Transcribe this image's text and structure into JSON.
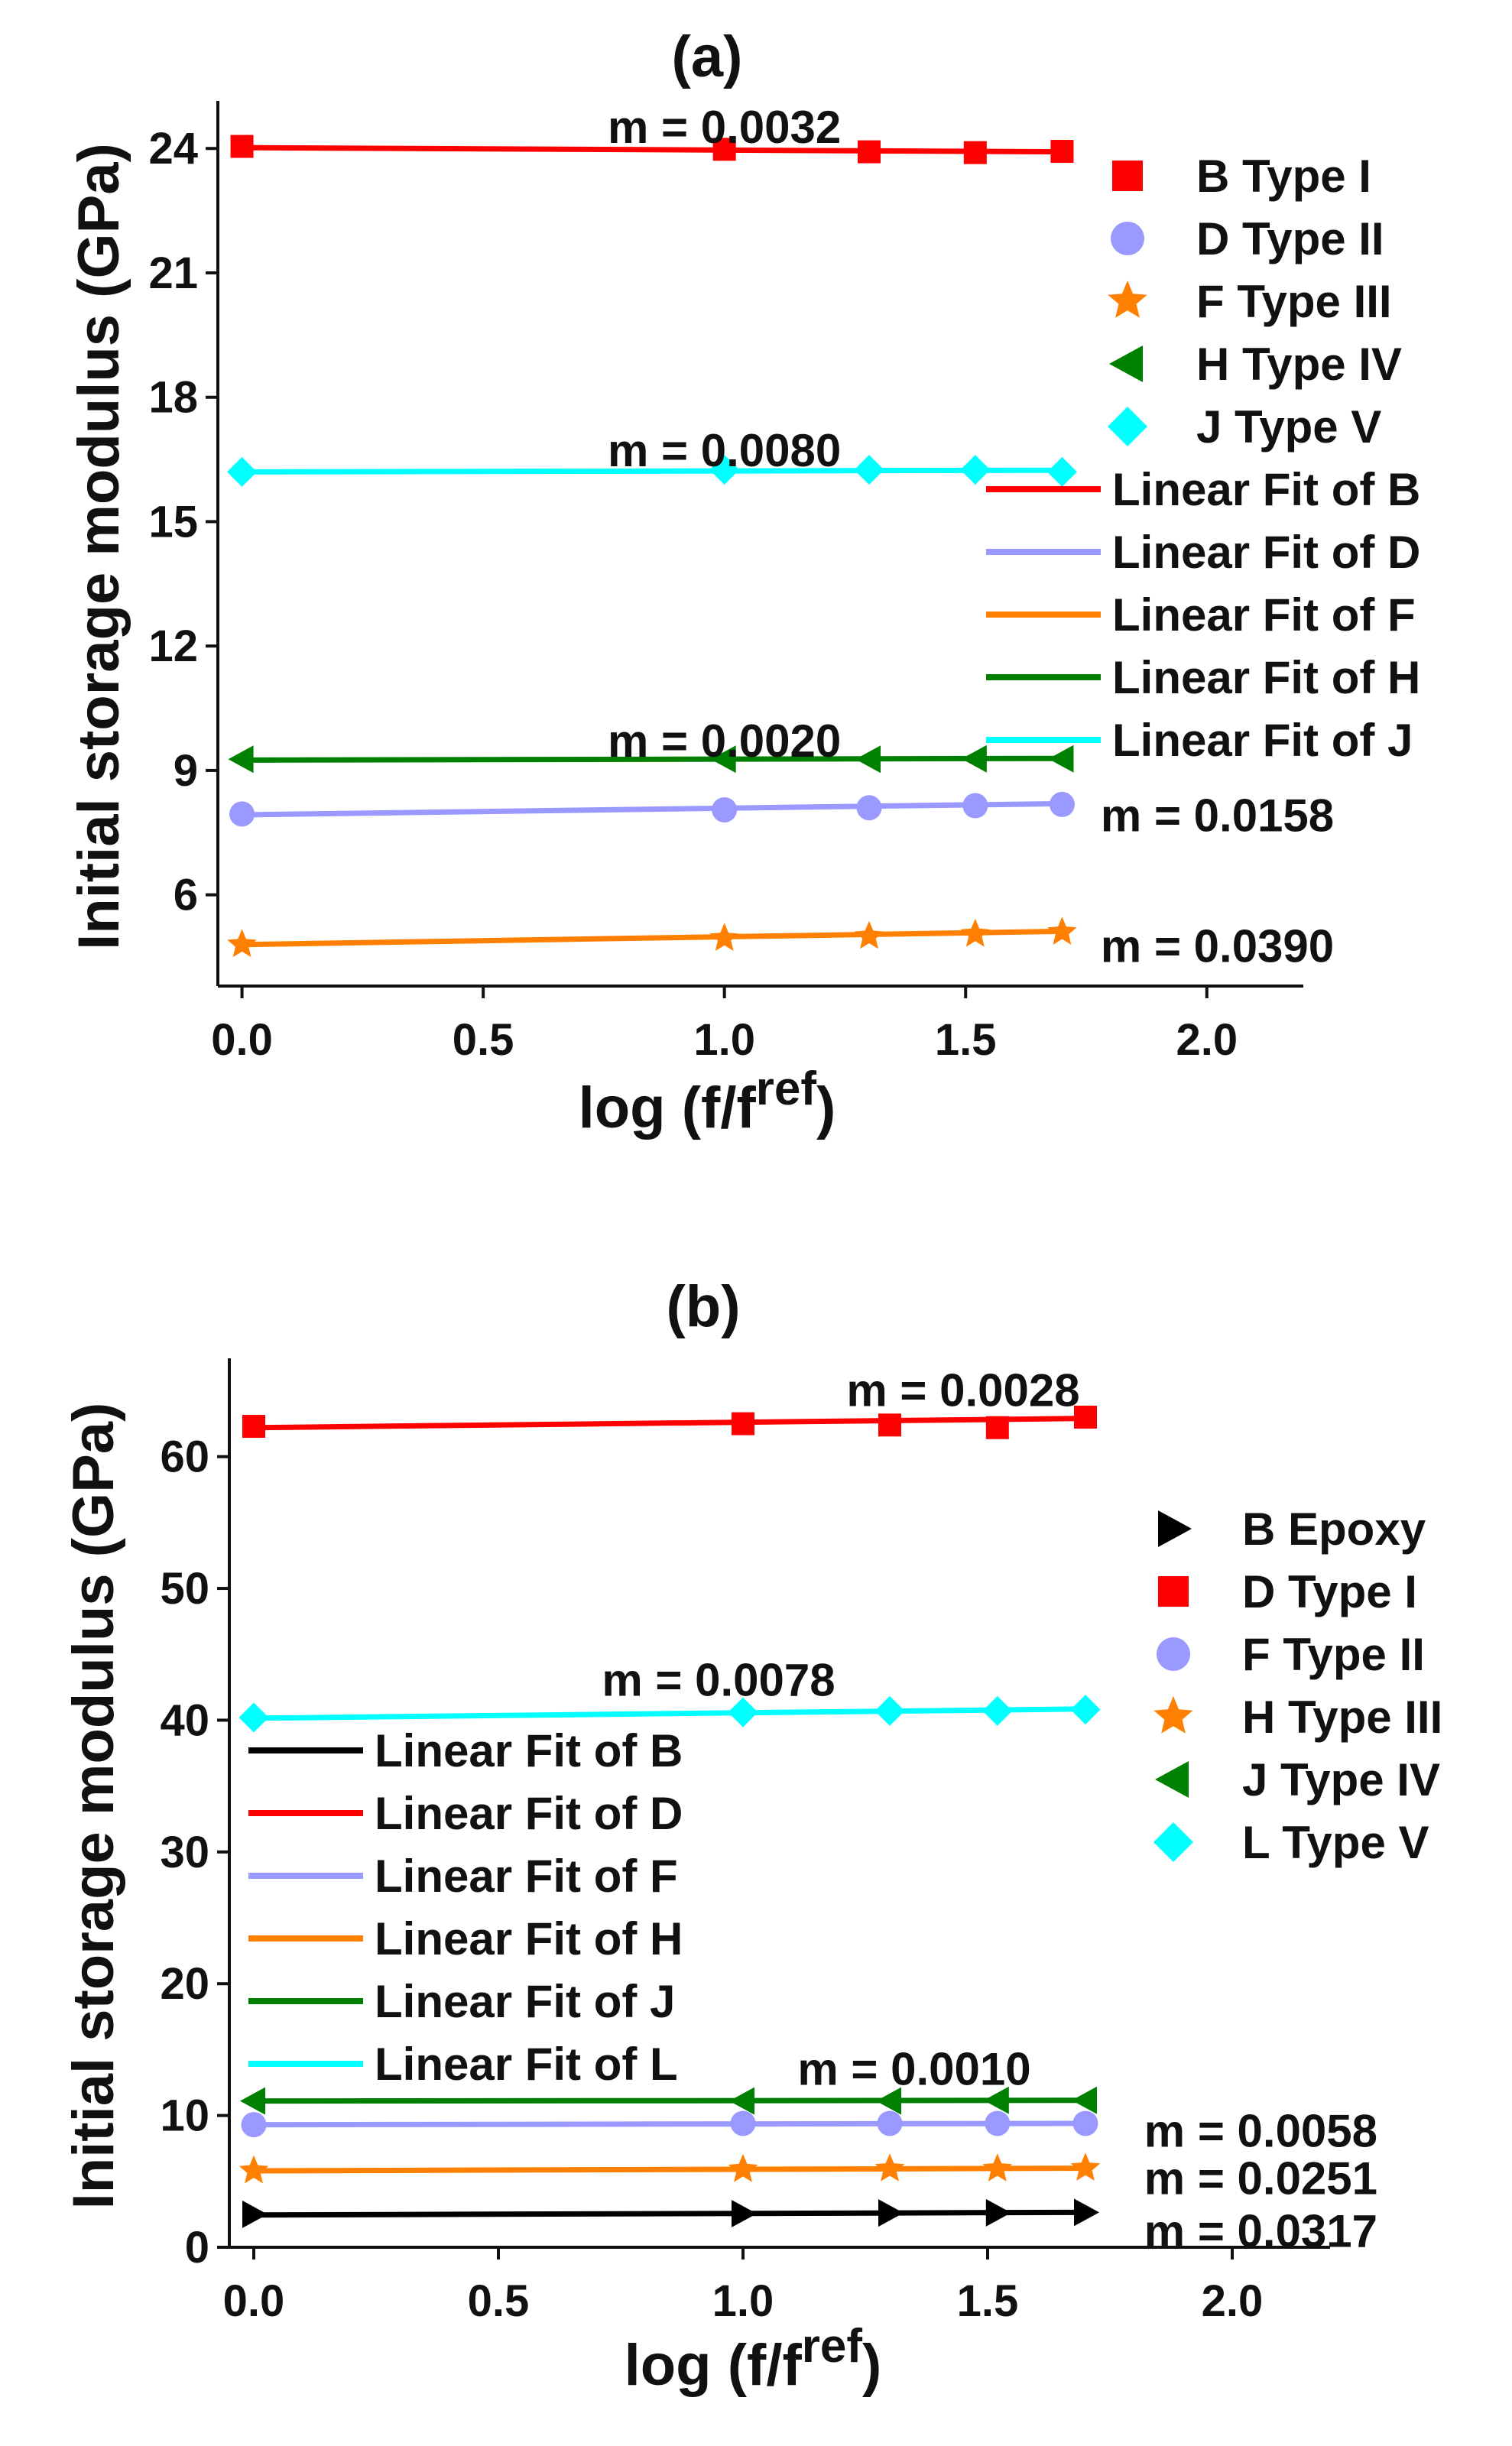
{
  "chart_data": [
    {
      "panel": "(a)",
      "type": "scatter",
      "xlabel": "log (f/f",
      "xlabel_sup": "ref",
      "xlabel_end": ")",
      "ylabel": "Initial storage modulus (GPa)",
      "xlim": [
        -0.05,
        2.2
      ],
      "ylim": [
        3.8,
        25.0
      ],
      "xticks": [
        0.0,
        0.5,
        1.0,
        1.5,
        2.0
      ],
      "xtick_labels": [
        "0.0",
        "0.5",
        "1.0",
        "1.5",
        "2.0"
      ],
      "yticks": [
        6,
        9,
        12,
        15,
        18,
        21,
        24
      ],
      "ytick_labels": [
        "6",
        "9",
        "12",
        "15",
        "18",
        "21",
        "24"
      ],
      "grid": false,
      "legend_position": "right",
      "x": [
        0.0,
        1.0,
        1.3,
        1.52,
        1.7
      ],
      "series": [
        {
          "name": "B Type I",
          "marker": "square",
          "color": "#ff0000",
          "values": [
            24.05,
            23.98,
            23.92,
            23.9,
            23.93
          ],
          "fit": [
            24.02,
            23.92
          ]
        },
        {
          "name": "D Type II",
          "marker": "circle",
          "color": "#9999ff",
          "values": [
            7.95,
            8.05,
            8.1,
            8.15,
            8.18
          ],
          "fit": [
            7.93,
            8.2
          ]
        },
        {
          "name": "F Type III",
          "marker": "star",
          "color": "#ff8000",
          "values": [
            4.8,
            4.95,
            5.0,
            5.05,
            5.1
          ],
          "fit": [
            4.8,
            5.12
          ]
        },
        {
          "name": "H Type IV",
          "marker": "triangle-left",
          "color": "#008000",
          "values": [
            9.27,
            9.27,
            9.27,
            9.28,
            9.28
          ],
          "fit": [
            9.25,
            9.29
          ]
        },
        {
          "name": "J Type V",
          "marker": "diamond",
          "color": "#00ffff",
          "values": [
            16.2,
            16.25,
            16.25,
            16.25,
            16.2
          ],
          "fit": [
            16.2,
            16.24
          ]
        }
      ],
      "fit_legend": [
        {
          "name": "Linear Fit of B",
          "color": "#ff0000"
        },
        {
          "name": "Linear Fit of D",
          "color": "#9999ff"
        },
        {
          "name": "Linear Fit of F",
          "color": "#ff8000"
        },
        {
          "name": "Linear Fit of H",
          "color": "#008000"
        },
        {
          "name": "Linear Fit of J",
          "color": "#00ffff"
        }
      ],
      "annotations": [
        {
          "text": "m = 0.0032",
          "x": 1.0,
          "y": 24.5,
          "anchor": "middle"
        },
        {
          "text": "m = 0.0080",
          "x": 1.0,
          "y": 16.7,
          "anchor": "middle"
        },
        {
          "text": "m = 0.0020",
          "x": 1.0,
          "y": 9.7,
          "anchor": "middle"
        },
        {
          "text": "m = 0.0158",
          "x": 1.78,
          "y": 7.9,
          "anchor": "start"
        },
        {
          "text": "m = 0.0390",
          "x": 1.78,
          "y": 4.75,
          "anchor": "start"
        }
      ]
    },
    {
      "panel": "(b)",
      "type": "scatter",
      "xlabel": "log (f/f",
      "xlabel_sup": "ref",
      "xlabel_end": ")",
      "ylabel": "Initial storage modulus (GPa)",
      "xlim": [
        -0.05,
        2.2
      ],
      "ylim": [
        0,
        67
      ],
      "xticks": [
        0.0,
        0.5,
        1.0,
        1.5,
        2.0
      ],
      "xtick_labels": [
        "0.0",
        "0.5",
        "1.0",
        "1.5",
        "2.0"
      ],
      "yticks": [
        0,
        10,
        20,
        30,
        40,
        50,
        60
      ],
      "ytick_labels": [
        "0",
        "10",
        "20",
        "30",
        "40",
        "50",
        "60"
      ],
      "grid": false,
      "legend_position": "right",
      "x": [
        0.0,
        1.0,
        1.3,
        1.52,
        1.7
      ],
      "series": [
        {
          "name": "B Epoxy",
          "marker": "triangle-right",
          "color": "#000000",
          "values": [
            2.5,
            2.55,
            2.6,
            2.62,
            2.65
          ],
          "fit": [
            2.45,
            2.65
          ]
        },
        {
          "name": "D Type I",
          "marker": "square",
          "color": "#ff0000",
          "values": [
            62.3,
            62.5,
            62.4,
            62.2,
            63.0
          ],
          "fit": [
            62.2,
            62.9
          ]
        },
        {
          "name": "F Type II",
          "marker": "circle",
          "color": "#9999ff",
          "values": [
            9.3,
            9.4,
            9.4,
            9.4,
            9.4
          ],
          "fit": [
            9.3,
            9.4
          ]
        },
        {
          "name": "H Type III",
          "marker": "star",
          "color": "#ff8000",
          "values": [
            5.8,
            5.9,
            5.95,
            5.95,
            6.0
          ],
          "fit": [
            5.8,
            6.0
          ]
        },
        {
          "name": "J Type IV",
          "marker": "triangle-left",
          "color": "#008000",
          "values": [
            11.1,
            11.1,
            11.1,
            11.15,
            11.15
          ],
          "fit": [
            11.1,
            11.15
          ]
        },
        {
          "name": "L Type V",
          "marker": "diamond",
          "color": "#00ffff",
          "values": [
            40.2,
            40.6,
            40.7,
            40.7,
            40.8
          ],
          "fit": [
            40.15,
            40.85
          ]
        }
      ],
      "fit_legend": [
        {
          "name": "Linear Fit of B",
          "color": "#000000"
        },
        {
          "name": "Linear Fit of D",
          "color": "#ff0000"
        },
        {
          "name": "Linear Fit of F",
          "color": "#9999ff"
        },
        {
          "name": "Linear Fit of H",
          "color": "#ff8000"
        },
        {
          "name": "Linear Fit of J",
          "color": "#008000"
        },
        {
          "name": "Linear Fit of L",
          "color": "#00ffff"
        }
      ],
      "annotations": [
        {
          "text": "m = 0.0028",
          "x": 1.45,
          "y": 65.0,
          "anchor": "middle"
        },
        {
          "text": "m = 0.0078",
          "x": 0.95,
          "y": 43.0,
          "anchor": "middle"
        },
        {
          "text": "m = 0.0010",
          "x": 1.35,
          "y": 13.5,
          "anchor": "middle"
        },
        {
          "text": "m = 0.0058",
          "x": 1.82,
          "y": 8.8,
          "anchor": "start"
        },
        {
          "text": "m = 0.0251",
          "x": 1.82,
          "y": 5.2,
          "anchor": "start"
        },
        {
          "text": "m = 0.0317",
          "x": 1.82,
          "y": 1.2,
          "anchor": "start"
        }
      ]
    }
  ]
}
